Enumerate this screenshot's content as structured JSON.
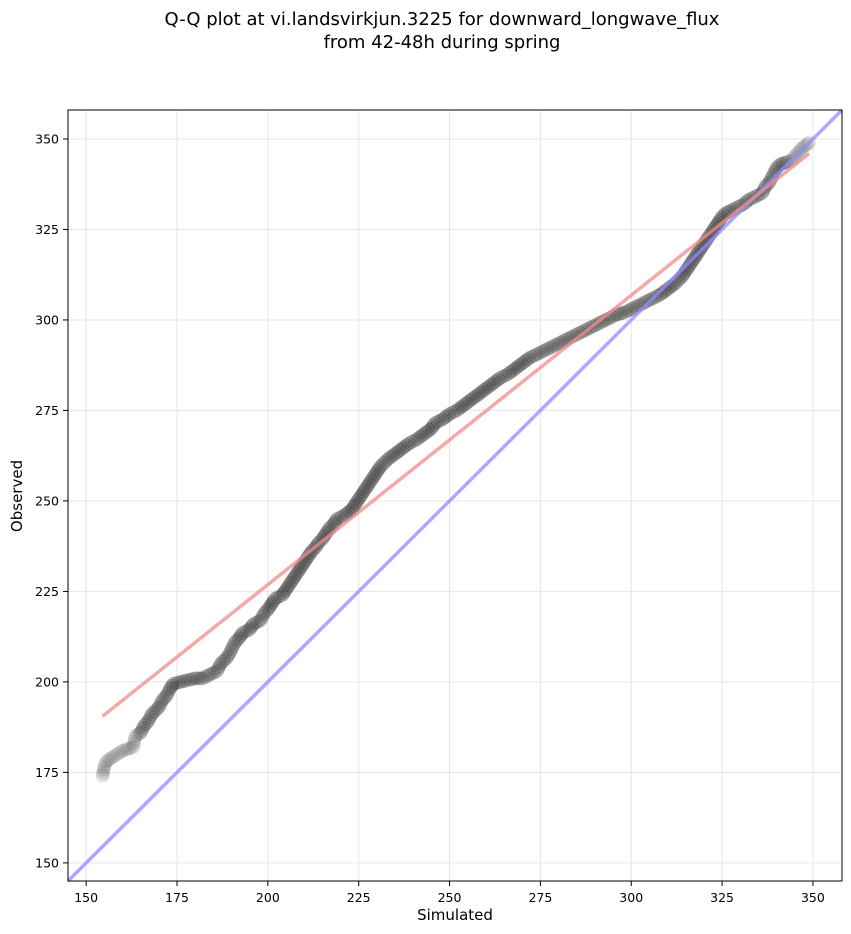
{
  "chart_data": {
    "type": "scatter",
    "title_line1": "Q-Q plot at vi.landsvirkjun.3225 for downward_longwave_flux",
    "title_line2": "from 42-48h during spring",
    "xlabel": "Simulated",
    "ylabel": "Observed",
    "xlim": [
      145,
      358
    ],
    "ylim": [
      145,
      358
    ],
    "xticks": [
      150,
      175,
      200,
      225,
      250,
      275,
      300,
      325,
      350
    ],
    "yticks": [
      150,
      175,
      200,
      225,
      250,
      275,
      300,
      325,
      350
    ],
    "grid": true,
    "legend": "none",
    "quantiles": [
      [
        154.5,
        174
      ],
      [
        155,
        176.5
      ],
      [
        155.5,
        178
      ],
      [
        157,
        179
      ],
      [
        160,
        181
      ],
      [
        163,
        182
      ],
      [
        163.5,
        185
      ],
      [
        165,
        186
      ],
      [
        166,
        188
      ],
      [
        167,
        189
      ],
      [
        168,
        191
      ],
      [
        169,
        192
      ],
      [
        170,
        193
      ],
      [
        171,
        195
      ],
      [
        172,
        196
      ],
      [
        173,
        198
      ],
      [
        174,
        199.5
      ],
      [
        176,
        200
      ],
      [
        178,
        200.5
      ],
      [
        180,
        201
      ],
      [
        182,
        201
      ],
      [
        184,
        202
      ],
      [
        186,
        203
      ],
      [
        187,
        205
      ],
      [
        188,
        206
      ],
      [
        189,
        207
      ],
      [
        190,
        209
      ],
      [
        191,
        211
      ],
      [
        192,
        212
      ],
      [
        193,
        213.5
      ],
      [
        195,
        214.5
      ],
      [
        196,
        216
      ],
      [
        198,
        217
      ],
      [
        199,
        219
      ],
      [
        200,
        220
      ],
      [
        201,
        221.5
      ],
      [
        202,
        223
      ],
      [
        204,
        224
      ],
      [
        205,
        225.5
      ],
      [
        206,
        227
      ],
      [
        207,
        228.5
      ],
      [
        208,
        230
      ],
      [
        209,
        231.5
      ],
      [
        210,
        233
      ],
      [
        211,
        234.5
      ],
      [
        212,
        236
      ],
      [
        213,
        237
      ],
      [
        214,
        238.5
      ],
      [
        215,
        239.5
      ],
      [
        216,
        241
      ],
      [
        217,
        242.5
      ],
      [
        218,
        243.5
      ],
      [
        219,
        245
      ],
      [
        221,
        246
      ],
      [
        223,
        247.5
      ],
      [
        224,
        249
      ],
      [
        225,
        250.5
      ],
      [
        226,
        252
      ],
      [
        227,
        253.5
      ],
      [
        228,
        255
      ],
      [
        229,
        256.5
      ],
      [
        230,
        258
      ],
      [
        231,
        259.5
      ],
      [
        232,
        260.5
      ],
      [
        233,
        261.5
      ],
      [
        235,
        263
      ],
      [
        237,
        264.5
      ],
      [
        239,
        266
      ],
      [
        241,
        267
      ],
      [
        243,
        268.5
      ],
      [
        245,
        270
      ],
      [
        246,
        271.5
      ],
      [
        248,
        272.5
      ],
      [
        250,
        274
      ],
      [
        252,
        275
      ],
      [
        254,
        276.5
      ],
      [
        256,
        278
      ],
      [
        258,
        279.5
      ],
      [
        260,
        281
      ],
      [
        262,
        282.5
      ],
      [
        264,
        284
      ],
      [
        266,
        285
      ],
      [
        268,
        286.5
      ],
      [
        270,
        288
      ],
      [
        272,
        289.5
      ],
      [
        274,
        290.5
      ],
      [
        276,
        291.5
      ],
      [
        278,
        292.5
      ],
      [
        280,
        293.5
      ],
      [
        282,
        294.5
      ],
      [
        284,
        295.5
      ],
      [
        286,
        296.5
      ],
      [
        288,
        297.5
      ],
      [
        290,
        298.5
      ],
      [
        292,
        299.5
      ],
      [
        294,
        300.5
      ],
      [
        296,
        301.5
      ],
      [
        298,
        302
      ],
      [
        300,
        303
      ],
      [
        302,
        304
      ],
      [
        304,
        305
      ],
      [
        306,
        306
      ],
      [
        308,
        307
      ],
      [
        310,
        308.5
      ],
      [
        312,
        310
      ],
      [
        314,
        312
      ],
      [
        315,
        313.5
      ],
      [
        316,
        315
      ],
      [
        317,
        316.5
      ],
      [
        318,
        318
      ],
      [
        319,
        319.5
      ],
      [
        320,
        321
      ],
      [
        321,
        322.5
      ],
      [
        322,
        324
      ],
      [
        323,
        325.5
      ],
      [
        324,
        327
      ],
      [
        325,
        328.5
      ],
      [
        326,
        329.5
      ],
      [
        327,
        330
      ],
      [
        329,
        331
      ],
      [
        331,
        332
      ],
      [
        332,
        333
      ],
      [
        334,
        334
      ],
      [
        336,
        335
      ],
      [
        337,
        337
      ],
      [
        338,
        338
      ],
      [
        339,
        340
      ],
      [
        340,
        342
      ],
      [
        341,
        343
      ],
      [
        344,
        344
      ],
      [
        347,
        347.5
      ],
      [
        349,
        349
      ]
    ],
    "one_to_one_line": {
      "from": [
        145,
        145
      ],
      "to": [
        358,
        358
      ],
      "color": "#8c8cff"
    },
    "fit_line": {
      "from": [
        154.5,
        190.5
      ],
      "to": [
        349,
        346
      ],
      "color": "#f08c8c"
    },
    "point_color": "#000000"
  }
}
